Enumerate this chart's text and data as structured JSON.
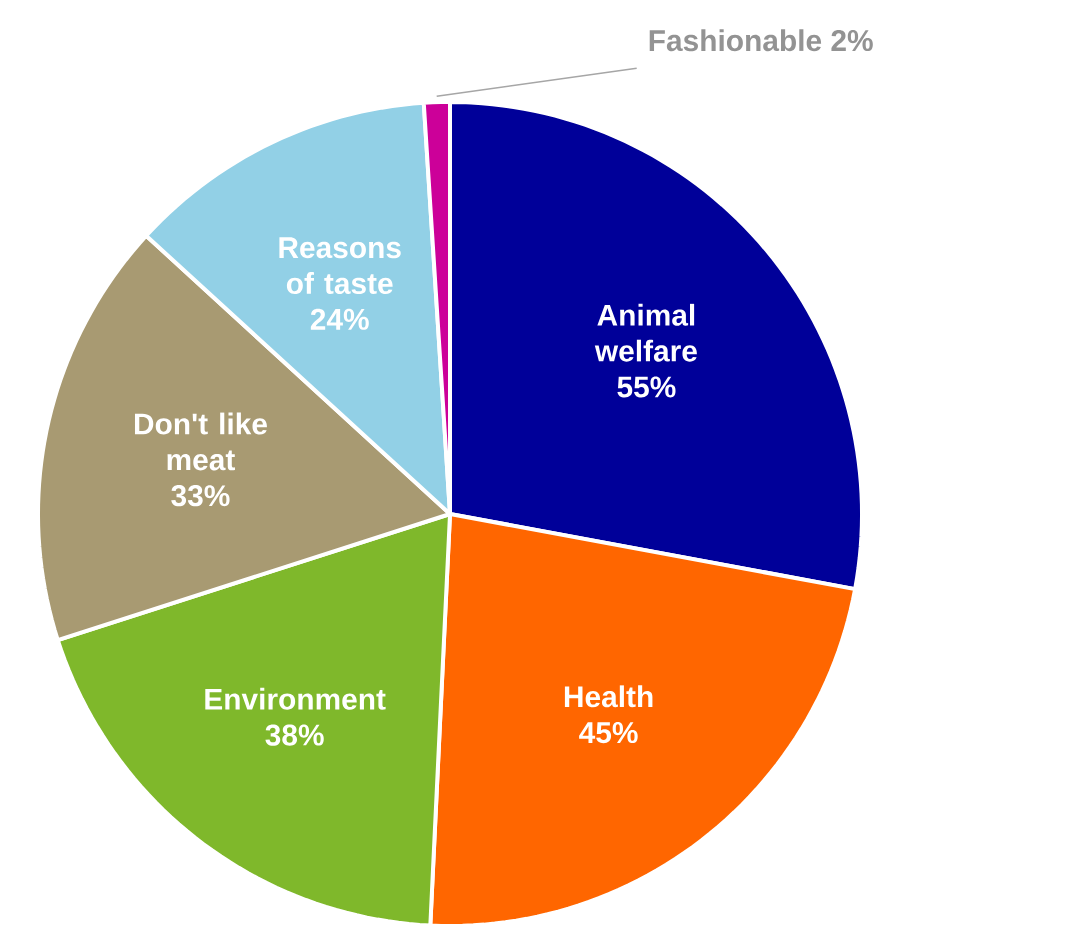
{
  "chart_data": {
    "type": "pie",
    "categories": [
      "Animal welfare",
      "Health",
      "Environment",
      "Don't like meat",
      "Reasons of taste",
      "Fashionable"
    ],
    "values": [
      55,
      45,
      38,
      33,
      24,
      2
    ],
    "colors": [
      "#000099",
      "#ff6600",
      "#7fb82b",
      "#a89a72",
      "#92d0e6",
      "#cc0099"
    ],
    "value_labels": [
      "55%",
      "45%",
      "38%",
      "33%",
      "24%",
      "2%"
    ]
  }
}
